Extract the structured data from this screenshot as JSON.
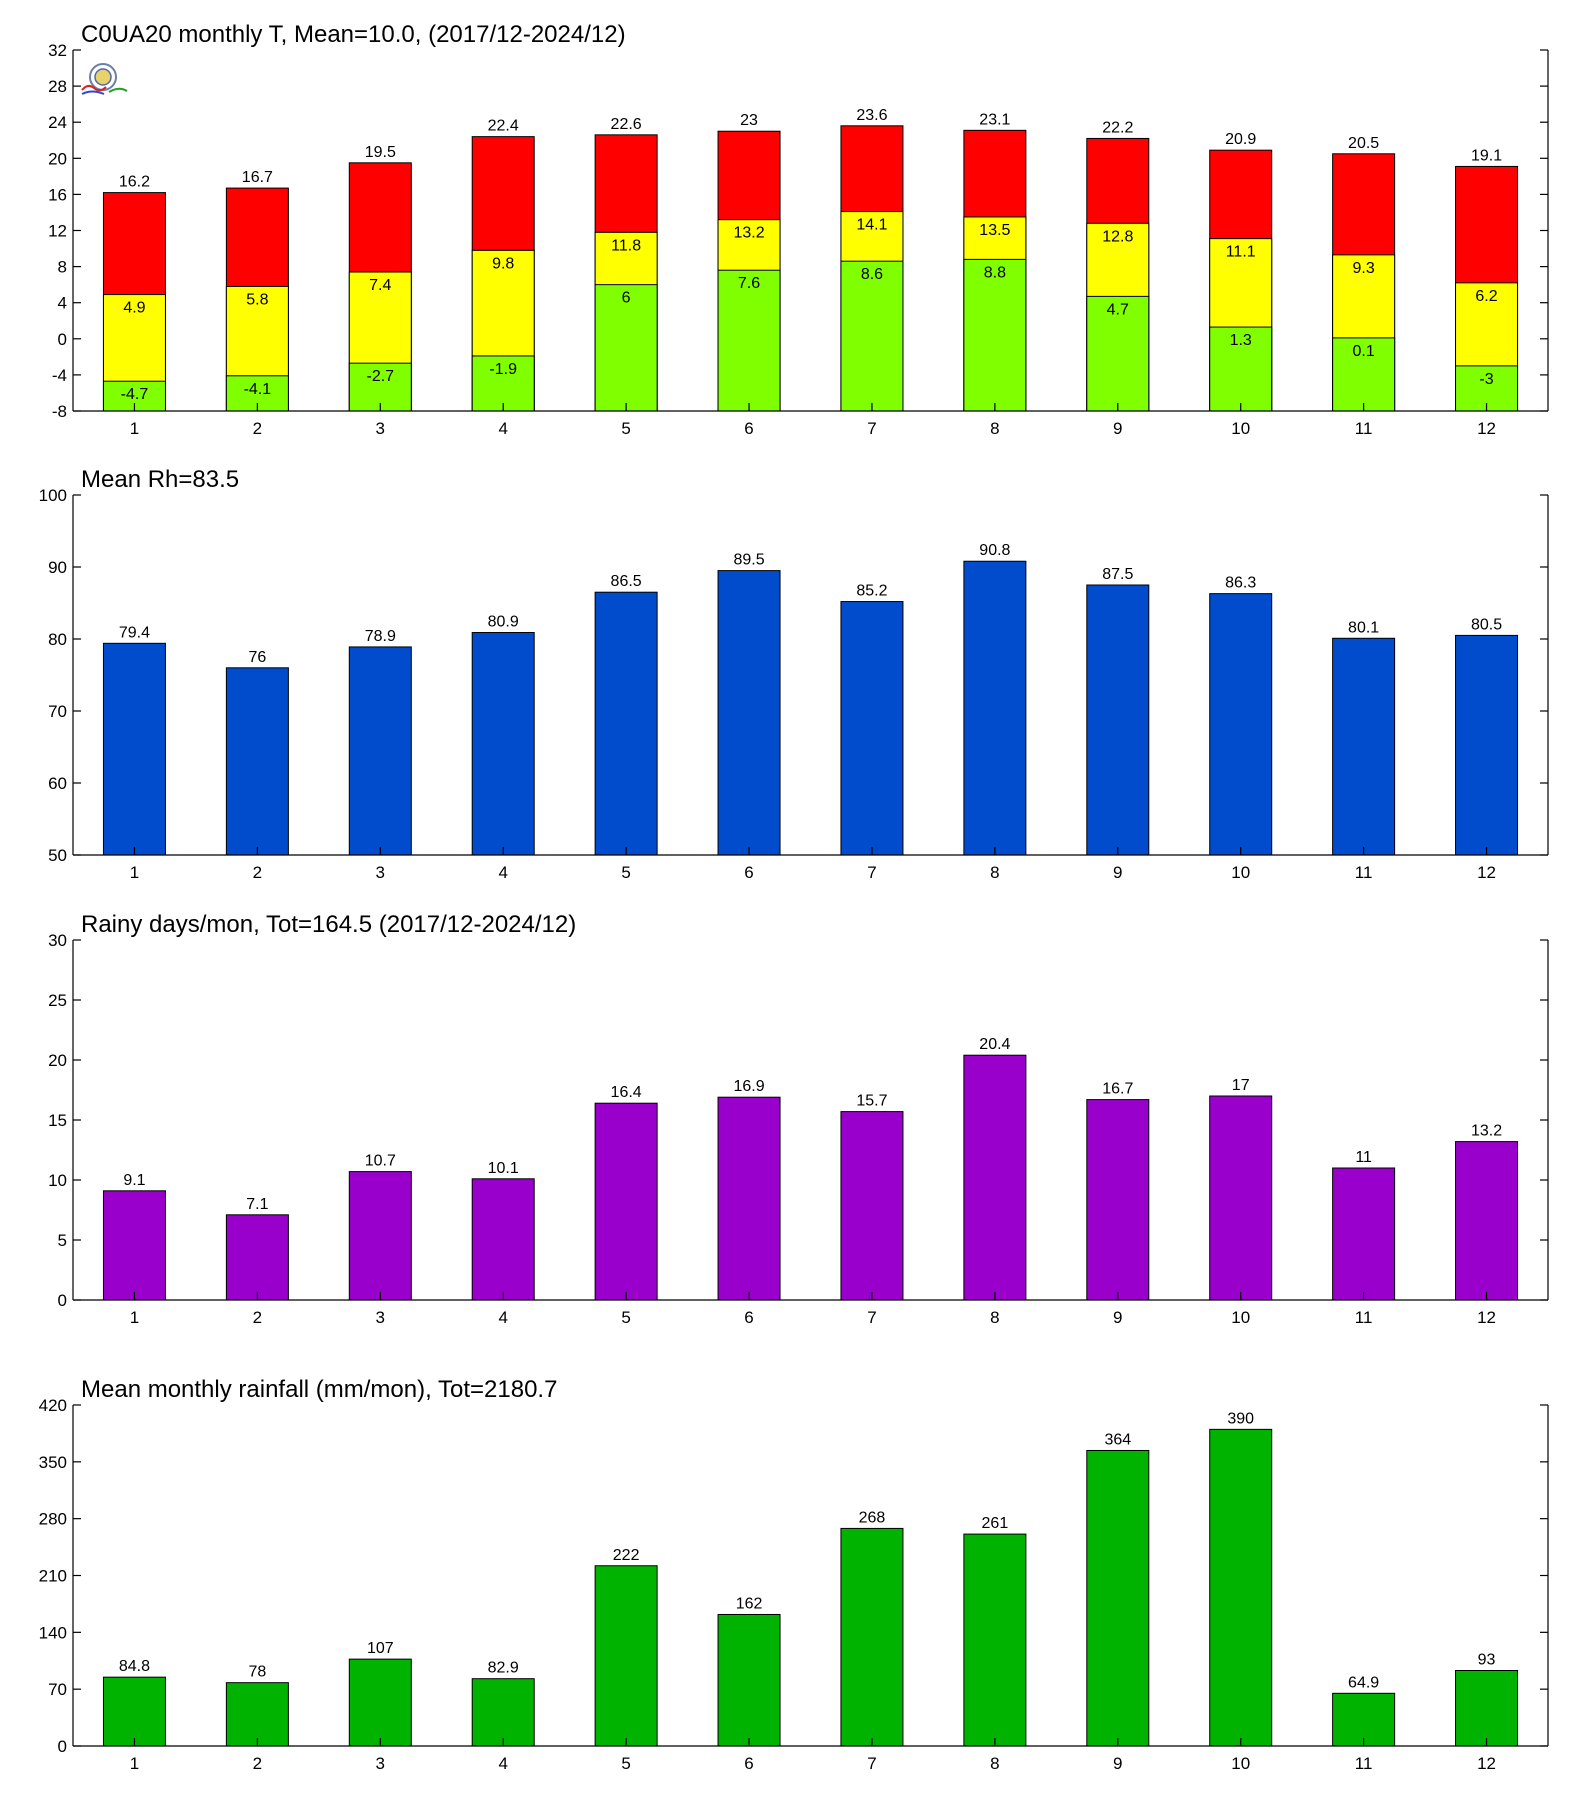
{
  "chart_data": [
    {
      "type": "bar",
      "subtype": "overlaid",
      "title": "C0UA20 monthly T, Mean=10.0, (2017/12-2024/12)",
      "categories": [
        "1",
        "2",
        "3",
        "4",
        "5",
        "6",
        "7",
        "8",
        "9",
        "10",
        "11",
        "12"
      ],
      "ylim": [
        -8,
        32
      ],
      "yticks": [
        "32",
        "28",
        "24",
        "20",
        "16",
        "12",
        "8",
        "4",
        "0",
        "-4",
        "-8"
      ],
      "grid": false,
      "series": [
        {
          "color": "#ff0000",
          "values": [
            16.2,
            16.7,
            19.5,
            22.4,
            22.6,
            23,
            23.6,
            23.1,
            22.2,
            20.9,
            20.5,
            19.1
          ],
          "labels": [
            "16.2",
            "16.7",
            "19.5",
            "22.4",
            "22.6",
            "23",
            "23.6",
            "23.1",
            "22.2",
            "20.9",
            "20.5",
            "19.1"
          ],
          "label_position": "above"
        },
        {
          "color": "#ffff00",
          "values": [
            4.9,
            5.8,
            7.4,
            9.8,
            11.8,
            13.2,
            14.1,
            13.5,
            12.8,
            11.1,
            9.3,
            6.2
          ],
          "labels": [
            "4.9",
            "5.8",
            "7.4",
            "9.8",
            "11.8",
            "13.2",
            "14.1",
            "13.5",
            "12.8",
            "11.1",
            "9.3",
            "6.2"
          ],
          "label_position": "inside"
        },
        {
          "color": "#80ff00",
          "values": [
            -4.7,
            -4.1,
            -2.7,
            -1.9,
            6,
            7.6,
            8.6,
            8.8,
            4.7,
            1.3,
            0.1,
            -3
          ],
          "labels": [
            "-4.7",
            "-4.1",
            "-2.7",
            "-1.9",
            "6",
            "7.6",
            "8.6",
            "8.8",
            "4.7",
            "1.3",
            "0.1",
            "-3"
          ],
          "label_position": "inside"
        }
      ],
      "logo": "station-lab-logo"
    },
    {
      "type": "bar",
      "title": "Mean Rh=83.5",
      "categories": [
        "1",
        "2",
        "3",
        "4",
        "5",
        "6",
        "7",
        "8",
        "9",
        "10",
        "11",
        "12"
      ],
      "ylim": [
        50,
        100
      ],
      "yticks": [
        "100",
        "90",
        "80",
        "70",
        "60",
        "50"
      ],
      "grid": false,
      "series": [
        {
          "color": "#004ccc",
          "values": [
            79.4,
            76,
            78.9,
            80.9,
            86.5,
            89.5,
            85.2,
            90.8,
            87.5,
            86.3,
            80.1,
            80.5
          ],
          "labels": [
            "79.4",
            "76",
            "78.9",
            "80.9",
            "86.5",
            "89.5",
            "85.2",
            "90.8",
            "87.5",
            "86.3",
            "80.1",
            "80.5"
          ],
          "label_position": "above"
        }
      ]
    },
    {
      "type": "bar",
      "title": "Rainy days/mon, Tot=164.5 (2017/12-2024/12)",
      "categories": [
        "1",
        "2",
        "3",
        "4",
        "5",
        "6",
        "7",
        "8",
        "9",
        "10",
        "11",
        "12"
      ],
      "ylim": [
        0,
        30
      ],
      "yticks": [
        "30",
        "25",
        "20",
        "15",
        "10",
        "5",
        "0"
      ],
      "grid": false,
      "series": [
        {
          "color": "#9900cc",
          "values": [
            9.1,
            7.1,
            10.7,
            10.1,
            16.4,
            16.9,
            15.7,
            20.4,
            16.7,
            17,
            11,
            13.2
          ],
          "labels": [
            "9.1",
            "7.1",
            "10.7",
            "10.1",
            "16.4",
            "16.9",
            "15.7",
            "20.4",
            "16.7",
            "17",
            "11",
            "13.2"
          ],
          "label_position": "above"
        }
      ]
    },
    {
      "type": "bar",
      "title": "Mean monthly rainfall (mm/mon), Tot=2180.7",
      "categories": [
        "1",
        "2",
        "3",
        "4",
        "5",
        "6",
        "7",
        "8",
        "9",
        "10",
        "11",
        "12"
      ],
      "ylim": [
        0,
        420
      ],
      "yticks": [
        "420",
        "350",
        "280",
        "210",
        "140",
        "70",
        "0"
      ],
      "grid": false,
      "series": [
        {
          "color": "#00b300",
          "values": [
            84.8,
            78,
            107,
            82.9,
            222,
            162,
            268,
            261,
            364,
            390,
            64.9,
            93
          ],
          "labels": [
            "84.8",
            "78",
            "107",
            "82.9",
            "222",
            "162",
            "268",
            "261",
            "364",
            "390",
            "64.9",
            "93"
          ],
          "label_position": "above"
        }
      ]
    }
  ]
}
